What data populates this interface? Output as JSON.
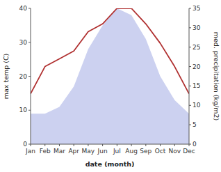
{
  "chart_data": {
    "type": "line",
    "categories": [
      "Jan",
      "Feb",
      "Mar",
      "Apr",
      "May",
      "Jun",
      "Jul",
      "Aug",
      "Sep",
      "Oct",
      "Nov",
      "Dec"
    ],
    "xlabel": "date (month)",
    "ylabel": "max temp (C)",
    "y2label": "med. precipitation (kg/m2)",
    "series": [
      {
        "type": "area",
        "color": "#b0b8e8",
        "values": [
          9,
          9,
          11,
          17,
          28,
          35,
          40,
          38,
          31,
          20,
          13,
          9
        ]
      },
      {
        "type": "line",
        "color": "#b03030",
        "axis": "y2",
        "values": [
          13,
          20,
          22,
          24,
          29,
          31,
          35,
          35,
          31,
          26,
          20,
          13
        ]
      }
    ],
    "ylim": [
      0,
      40
    ],
    "yticks": [
      0,
      10,
      20,
      30,
      40
    ],
    "y2lim": [
      0,
      35
    ],
    "y2ticks": [
      0,
      5,
      10,
      15,
      20,
      25,
      30,
      35
    ],
    "grid": false
  }
}
